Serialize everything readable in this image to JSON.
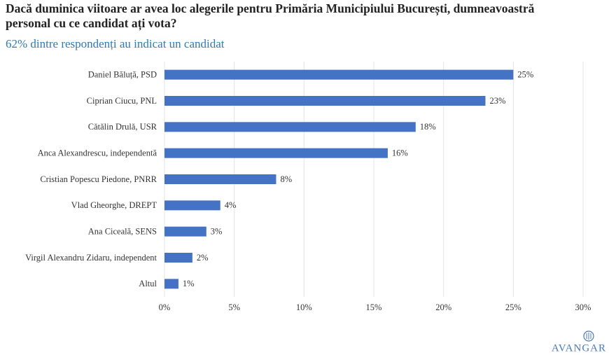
{
  "chart_data": {
    "type": "bar",
    "orientation": "horizontal",
    "title": "Dacă duminica viitoare ar avea loc alegerile pentru Primăria Municipiului București, dumneavoastră personal cu ce candidat ați vota?",
    "subtitle": "62% dintre respondenți au indicat un candidat",
    "categories": [
      "Daniel Băluță, PSD",
      "Ciprian Ciucu, PNL",
      "Cătălin Drulă, USR",
      "Anca Alexandrescu, independentă",
      "Cristian Popescu Piedone, PNRR",
      "Vlad Gheorghe, DREPT",
      "Ana Ciceală, SENS",
      "Virgil Alexandru Zidaru, independent",
      "Altul"
    ],
    "values": [
      25,
      23,
      18,
      16,
      8,
      4,
      3,
      2,
      1
    ],
    "value_labels": [
      "25%",
      "23%",
      "18%",
      "16%",
      "8%",
      "4%",
      "3%",
      "2%",
      "1%"
    ],
    "color": "#4472c4",
    "xlim": [
      0,
      30
    ],
    "xticks": [
      {
        "value": 0,
        "label": "0%"
      },
      {
        "value": 5,
        "label": "5%"
      },
      {
        "value": 10,
        "label": "10%"
      },
      {
        "value": 15,
        "label": "15%"
      },
      {
        "value": 20,
        "label": "20%"
      },
      {
        "value": 25,
        "label": "25%"
      },
      {
        "value": 30,
        "label": "30%"
      }
    ],
    "grid": true
  },
  "logo": "AVANGAR"
}
